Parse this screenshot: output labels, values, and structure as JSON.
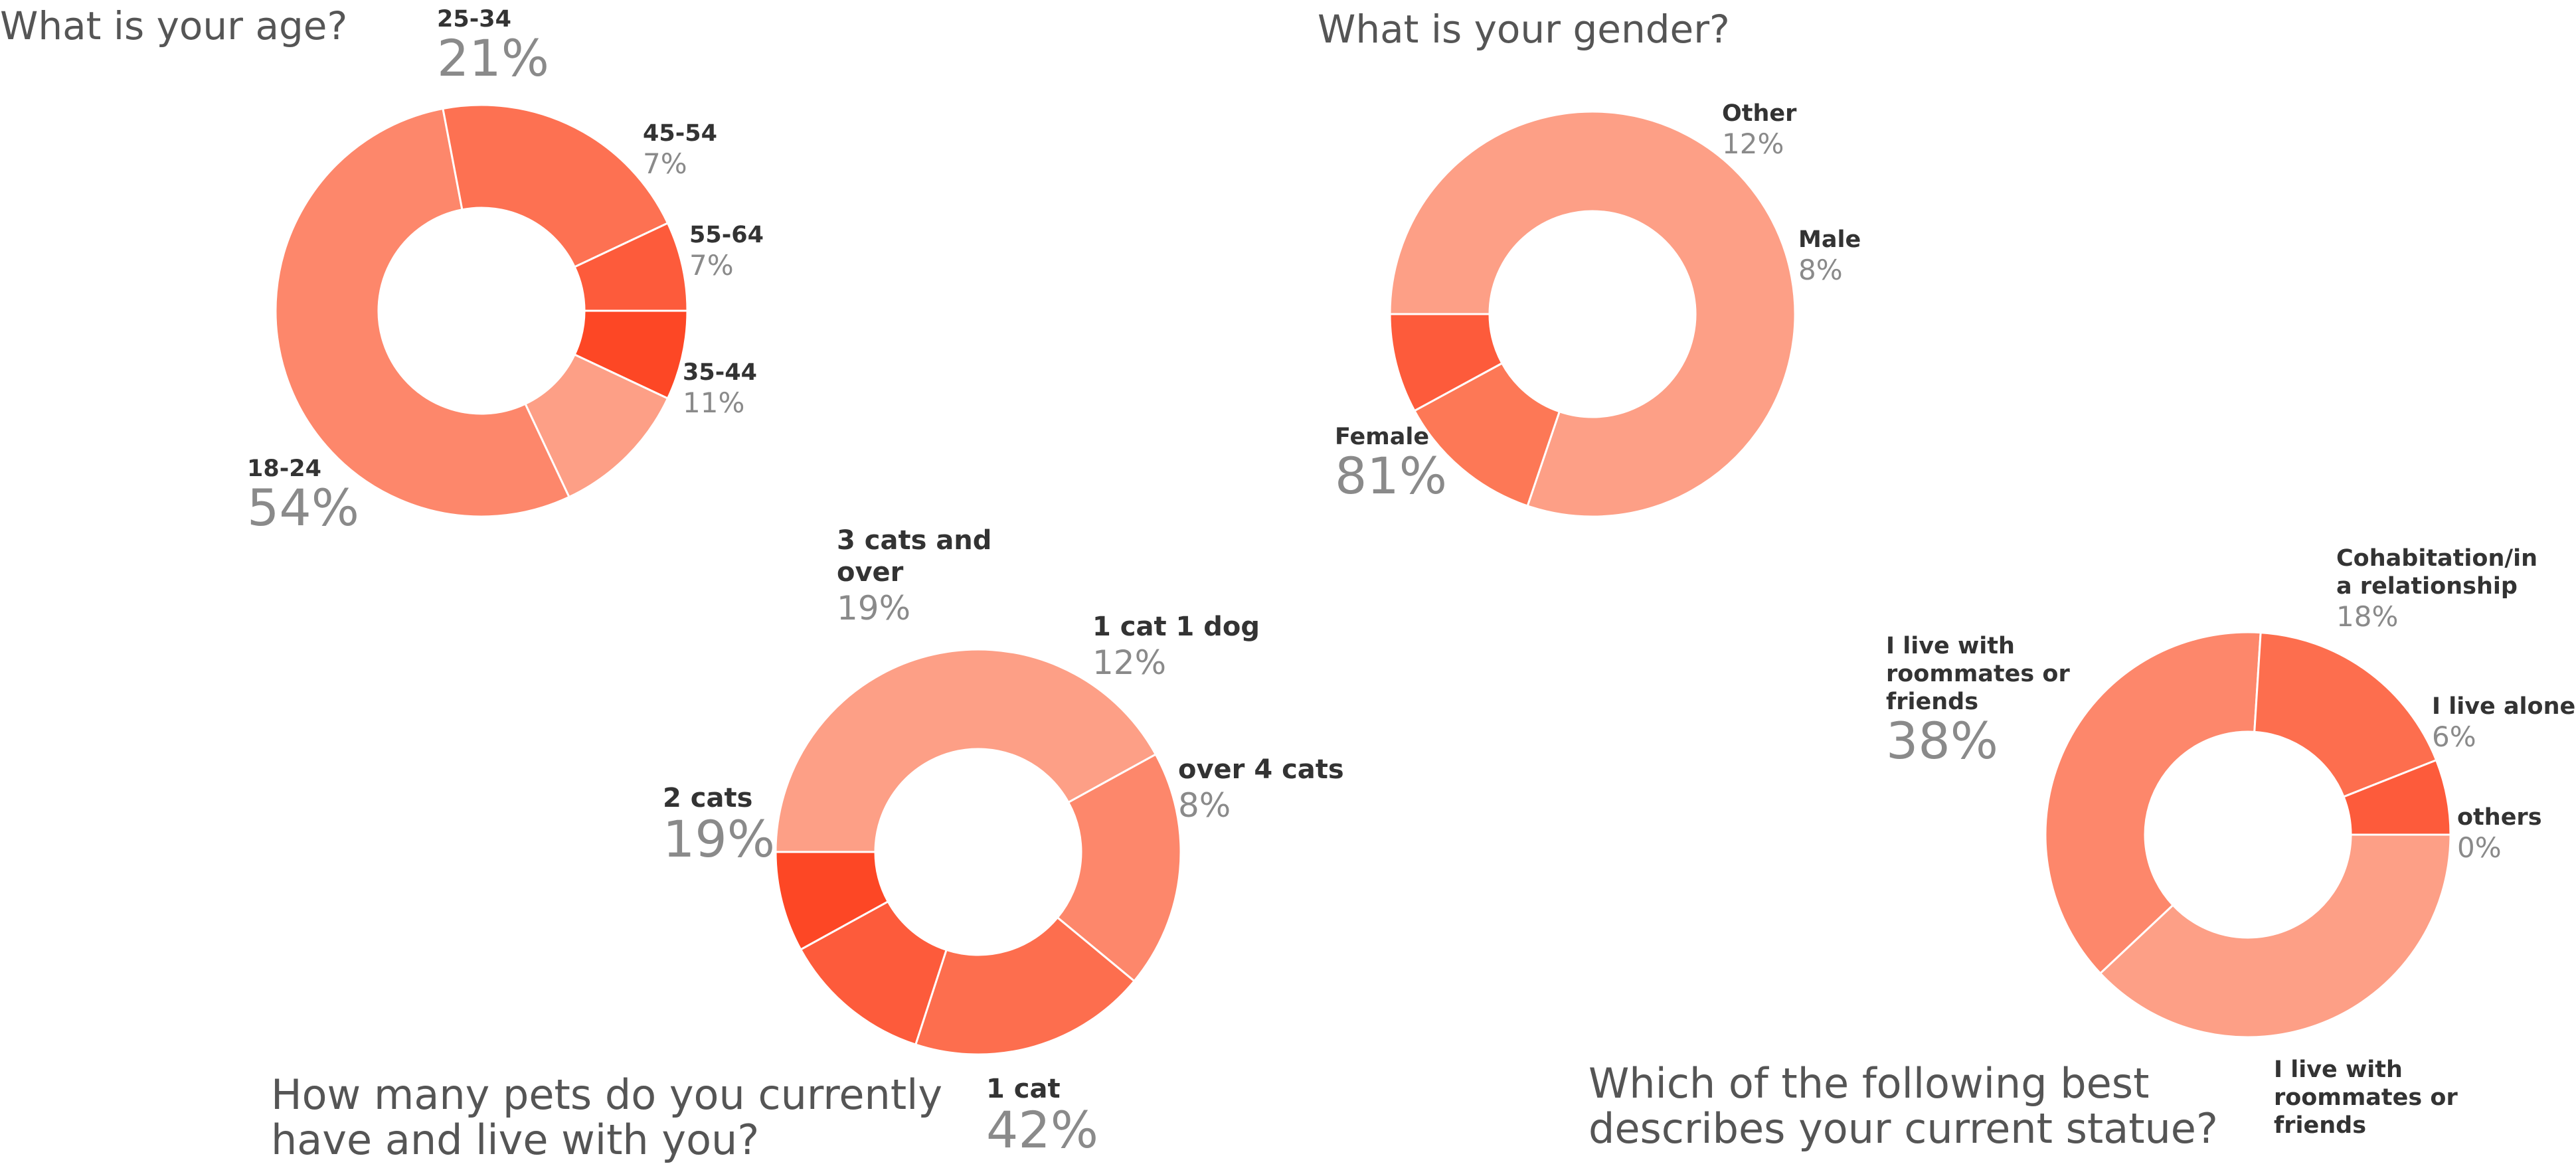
{
  "chart_data": [
    {
      "type": "pie",
      "title": "What is your age?",
      "categories": [
        "55-64",
        "35-44",
        "18-24",
        "25-34",
        "45-54"
      ],
      "values": [
        7,
        11,
        54,
        21,
        7
      ],
      "labels": [
        "7%",
        "11%",
        "54%",
        "21%",
        "7%"
      ],
      "colors": [
        "#fd4725",
        "#fd9f86",
        "#fd876b",
        "#fd7152",
        "#fd5b3b"
      ]
    },
    {
      "type": "pie",
      "title": "What is your gender?",
      "categories": [
        "Female",
        "Other",
        "Male"
      ],
      "values": [
        81,
        12,
        8
      ],
      "labels": [
        "81%",
        "12%",
        "8%"
      ],
      "colors": [
        "#fd9f86",
        "#fd7856",
        "#fd5b3b"
      ]
    },
    {
      "type": "pie",
      "title": "How many pets do you currently have and live with you?",
      "categories": [
        "1 cat",
        "2 cats",
        "3 cats and over",
        "1 cat 1 dog",
        "over 4 cats"
      ],
      "values": [
        42,
        19,
        19,
        12,
        8
      ],
      "labels": [
        "42%",
        "19%",
        "19%",
        "12%",
        "8%"
      ],
      "colors": [
        "#fd9f86",
        "#fd876b",
        "#fd6e4e",
        "#fd5b3b",
        "#fd4725"
      ]
    },
    {
      "type": "pie",
      "title": "Which of the following best describes your current statue?",
      "categories": [
        "I live with roommates or friends",
        "I live with roommates or friends",
        "Cohabitation/in a relationship",
        "I live alone",
        "others"
      ],
      "values": [
        38,
        38,
        18,
        6,
        0
      ],
      "labels": [
        "38%",
        "",
        "18%",
        "6%",
        "0%"
      ],
      "colors": [
        "#fd9f86",
        "#fd876b",
        "#fd6e4e",
        "#fd5b3b",
        "#fd4725"
      ]
    }
  ]
}
